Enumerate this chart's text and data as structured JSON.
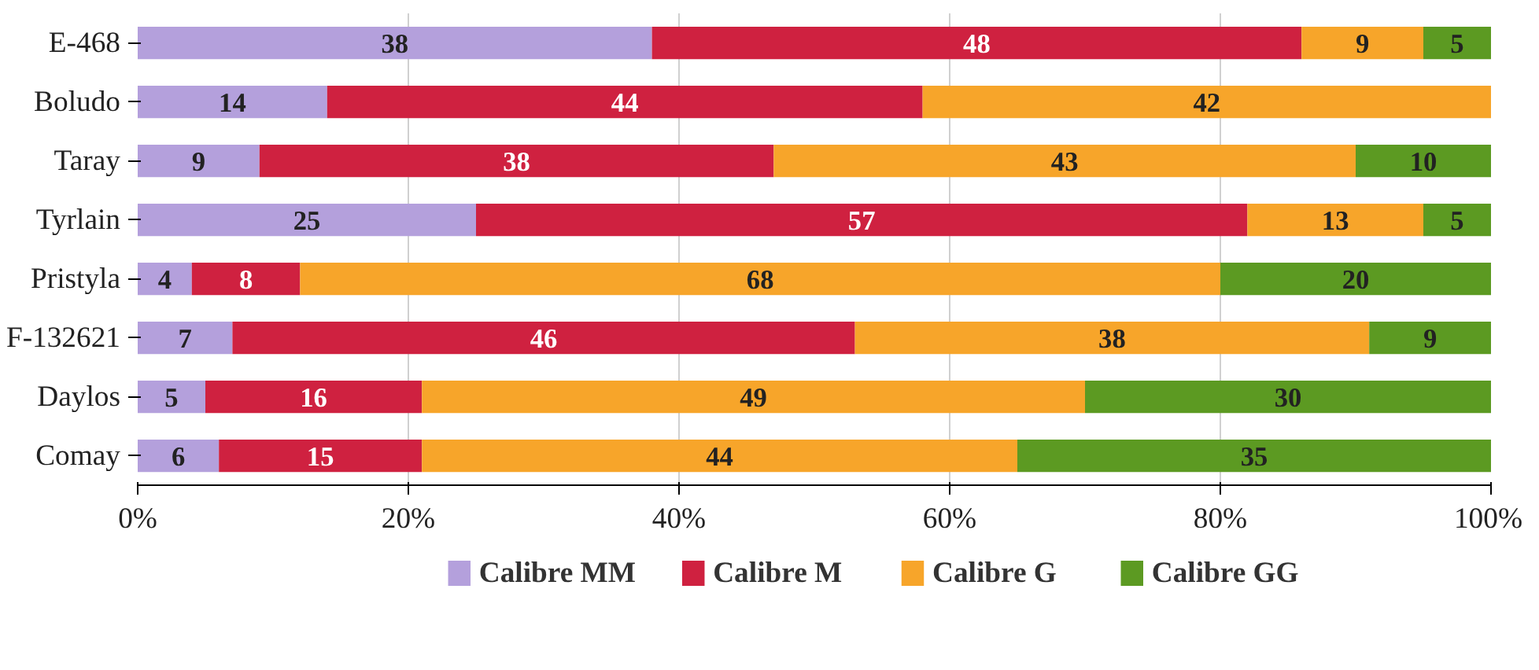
{
  "chart_data": {
    "type": "bar",
    "orientation": "horizontal",
    "stacked": true,
    "data_labels": true,
    "grid": "x",
    "legend": "bottom",
    "categories": [
      "E-468",
      "Boludo",
      "Taray",
      "Tyrlain",
      "Pristyla",
      "F-132621",
      "Daylos",
      "Comay"
    ],
    "xlim": [
      0,
      100
    ],
    "xticks": [
      {
        "value": 0,
        "label": "0%"
      },
      {
        "value": 20,
        "label": "20%"
      },
      {
        "value": 40,
        "label": "40%"
      },
      {
        "value": 60,
        "label": "60%"
      },
      {
        "value": 80,
        "label": "80%"
      },
      {
        "value": 100,
        "label": "100%"
      }
    ],
    "series": [
      {
        "name": "Calibre MM",
        "color": "#b4a0dc",
        "values": [
          38,
          14,
          9,
          25,
          4,
          7,
          5,
          6
        ]
      },
      {
        "name": "Calibre M",
        "color": "#cf2140",
        "values": [
          48,
          44,
          38,
          57,
          8,
          46,
          16,
          15
        ]
      },
      {
        "name": "Calibre G",
        "color": "#f7a52a",
        "values": [
          9,
          42,
          43,
          13,
          68,
          38,
          49,
          44
        ]
      },
      {
        "name": "Calibre GG",
        "color": "#5c9a22",
        "values": [
          5,
          null,
          10,
          5,
          20,
          9,
          30,
          35
        ]
      }
    ]
  }
}
